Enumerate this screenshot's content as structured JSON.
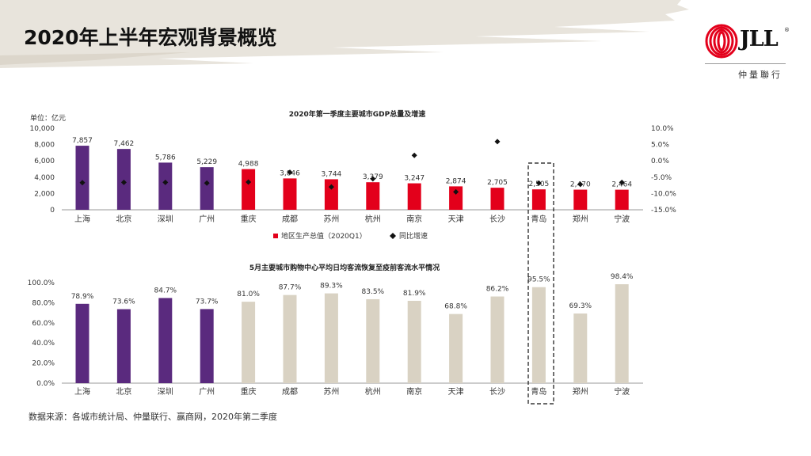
{
  "page": {
    "title": "2020年上半年宏观背景概览",
    "source": "数据来源：各城市统计局、仲量联行、赢商网，2020年第二季度"
  },
  "logo": {
    "wordmark": "JLL",
    "registered": "®",
    "subtitle": "仲量聯行"
  },
  "colors": {
    "purple": "#5a2a7e",
    "red": "#e3001b",
    "beige": "#d9d2c3",
    "marker": "#111111"
  },
  "chart_data": [
    {
      "type": "bar",
      "title": "2020年第一季度主要城市GDP总量及增速",
      "unit_label": "单位：亿元",
      "categories": [
        "上海",
        "北京",
        "深圳",
        "广州",
        "重庆",
        "成都",
        "苏州",
        "杭州",
        "南京",
        "天津",
        "长沙",
        "青岛",
        "郑州",
        "宁波"
      ],
      "series": [
        {
          "name": "地区生产总值（2020Q1）",
          "type": "bar",
          "values": [
            7857,
            7462,
            5786,
            5229,
            4988,
            3846,
            3744,
            3379,
            3247,
            2874,
            2705,
            2505,
            2470,
            2464
          ],
          "labels": [
            "7,857",
            "7,462",
            "5,786",
            "5,229",
            "4,988",
            "3,846",
            "3,744",
            "3,379",
            "3,247",
            "2,874",
            "2,705",
            "2,505",
            "2,470",
            "2,464"
          ]
        },
        {
          "name": "同比增速",
          "type": "scatter",
          "axis": "right",
          "values": [
            -6.7,
            -6.6,
            -6.6,
            -6.8,
            -6.5,
            -3.5,
            -8.0,
            -5.5,
            1.7,
            -9.5,
            5.9,
            -6.8,
            -7.2,
            -6.6
          ]
        }
      ],
      "ylim_left": [
        0,
        10000
      ],
      "ylim_right": [
        -15,
        10
      ],
      "yticks_left": [
        "10,000",
        "8,000",
        "6,000",
        "4,000",
        "2,000",
        "0"
      ],
      "yticks_right": [
        "10.0%",
        "5.0%",
        "0.0%",
        "-5.0%",
        "-10.0%",
        "-15.0%"
      ],
      "legend": [
        "地区生产总值（2020Q1）",
        "同比增速"
      ]
    },
    {
      "type": "bar",
      "title": "5月主要城市购物中心平均日均客流恢复至疫前客流水平情况",
      "categories": [
        "上海",
        "北京",
        "深圳",
        "广州",
        "重庆",
        "成都",
        "苏州",
        "杭州",
        "南京",
        "天津",
        "长沙",
        "青岛",
        "郑州",
        "宁波"
      ],
      "values": [
        78.9,
        73.6,
        84.7,
        73.7,
        81.0,
        87.7,
        89.3,
        83.5,
        81.9,
        68.8,
        86.2,
        95.5,
        69.3,
        98.4
      ],
      "labels": [
        "78.9%",
        "73.6%",
        "84.7%",
        "73.7%",
        "81.0%",
        "87.7%",
        "89.3%",
        "83.5%",
        "81.9%",
        "68.8%",
        "86.2%",
        "95.5%",
        "69.3%",
        "98.4%"
      ],
      "highlight_count": 4,
      "ylim": [
        0,
        100
      ],
      "yticks": [
        "100.0%",
        "80.0%",
        "60.0%",
        "40.0%",
        "20.0%",
        "0.0%"
      ]
    }
  ]
}
